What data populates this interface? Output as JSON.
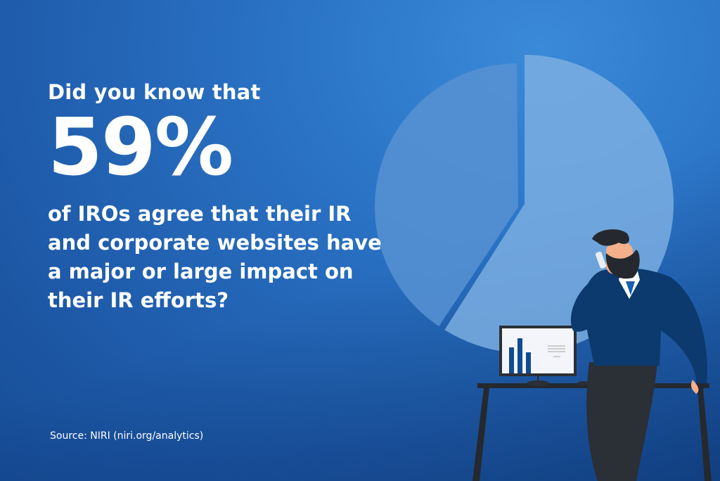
{
  "headline": {
    "intro": "Did you know that",
    "stat": "59%",
    "body": "of IROs agree that their IR and corporate websites have a major or large impact on their IR efforts?"
  },
  "source": "Source: NIRI (niri.org/analytics)",
  "pie": {
    "highlighted_percent": 59,
    "remainder_percent": 41
  },
  "colors": {
    "background": "#2368b8",
    "pie_major": "#7aaee0",
    "pie_minor": "#5792d2",
    "sweater": "#0c3a6e",
    "pants": "#2b2f36",
    "skin": "#f4b08a"
  }
}
